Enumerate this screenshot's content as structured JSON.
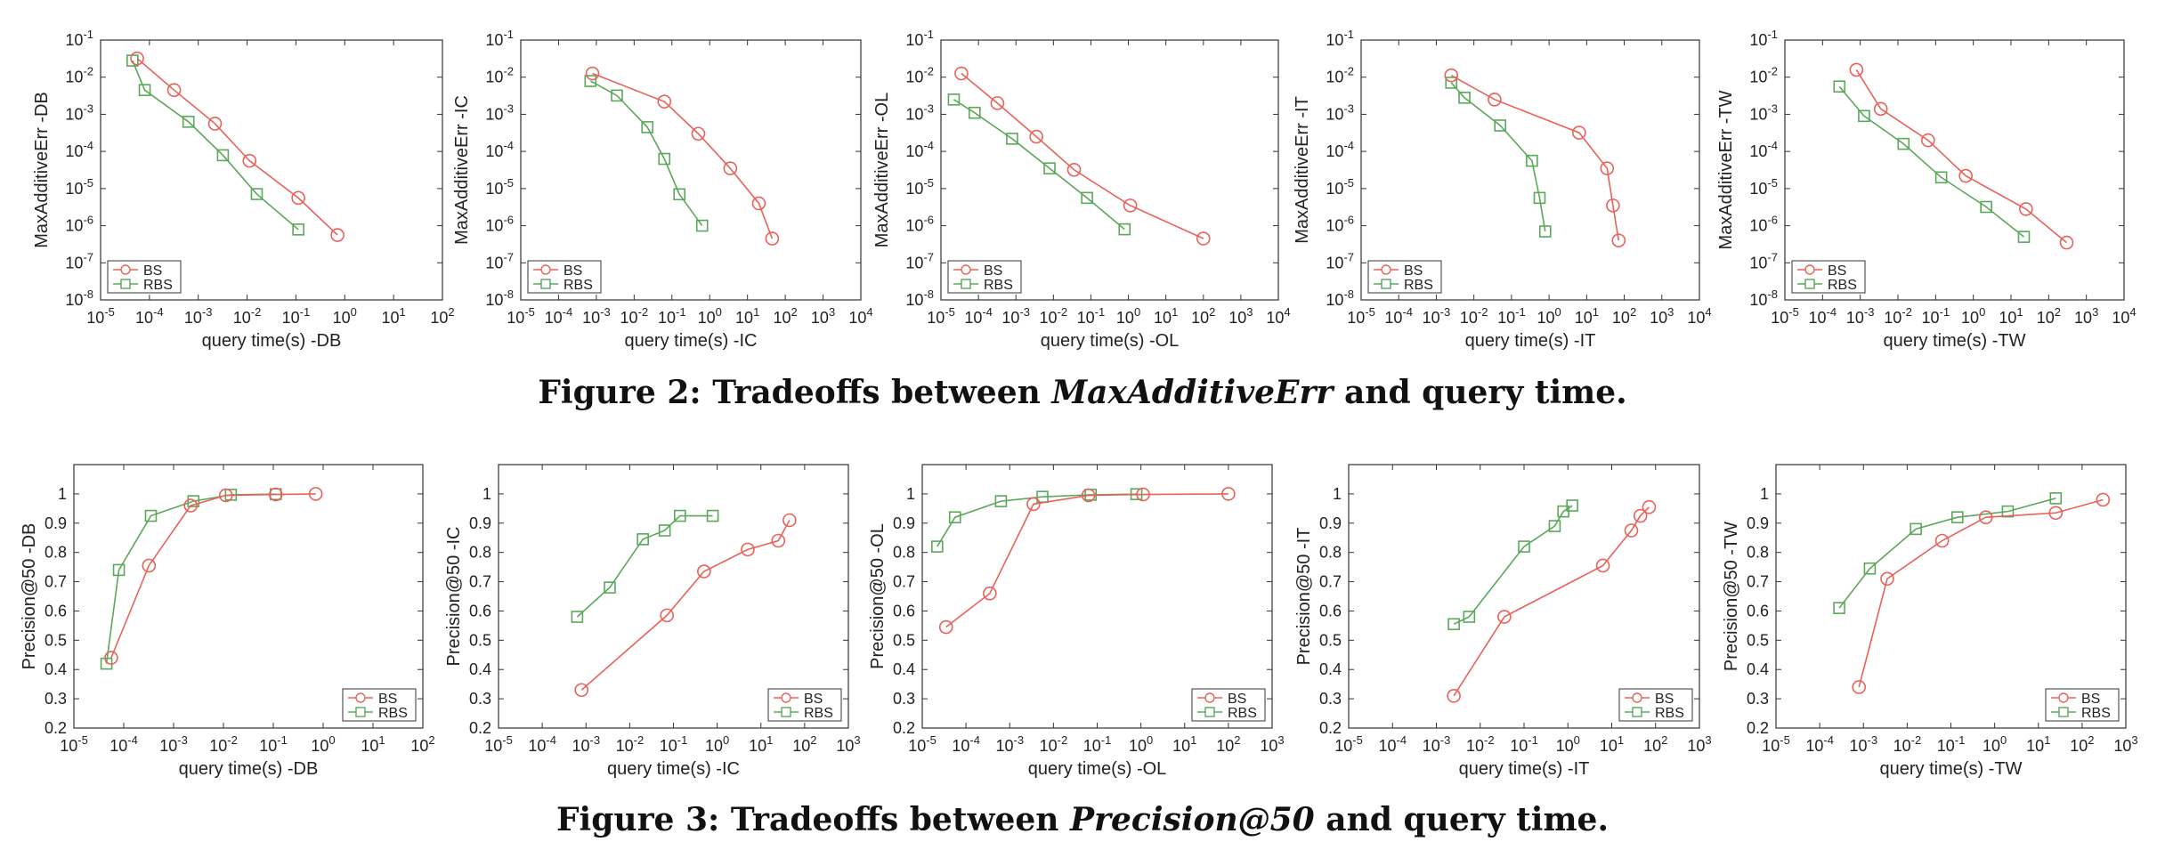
{
  "figures": [
    {
      "caption": {
        "prefix": "Figure 2: Tradeoffs between ",
        "metric": "MaxAdditiveErr",
        "suffix": " and query time."
      }
    },
    {
      "caption": {
        "prefix": "Figure 3: Tradeoffs between ",
        "metric": "Precision@50",
        "suffix": " and query time."
      }
    }
  ],
  "colors": {
    "BS": "#e8625a",
    "RBS": "#5aa85a"
  },
  "chart_data": [
    {
      "type": "line",
      "xscale": "log",
      "yscale": "log",
      "xlim": [
        -5,
        2
      ],
      "ylim": [
        -8,
        -1
      ],
      "xlabel": "query time(s) -DB",
      "ylabel": "MaxAdditiveErr -DB",
      "grid": false,
      "legend": "bottom-left",
      "x_ticks": [
        "10^-5",
        "10^-4",
        "10^-3",
        "10^-2",
        "10^-1",
        "10^0",
        "10^1",
        "10^2"
      ],
      "y_ticks": [
        "10^-8",
        "10^-7",
        "10^-6",
        "10^-5",
        "10^-4",
        "10^-3",
        "10^-2",
        "10^-1"
      ],
      "series": [
        {
          "name": "BS",
          "marker": "circle",
          "x": [
            5.6e-05,
            0.00032,
            0.0022,
            0.0112,
            0.112,
            0.71
          ],
          "y": [
            0.032,
            0.0045,
            0.00056,
            5.6e-05,
            5.6e-06,
            5.6e-07
          ]
        },
        {
          "name": "RBS",
          "marker": "square",
          "x": [
            4.5e-05,
            8e-05,
            0.00063,
            0.0032,
            0.0158,
            0.112
          ],
          "y": [
            0.028,
            0.0045,
            0.00063,
            7.9e-05,
            7.1e-06,
            7.9e-07
          ]
        }
      ]
    },
    {
      "type": "line",
      "xscale": "log",
      "yscale": "log",
      "xlim": [
        -5,
        4
      ],
      "ylim": [
        -8,
        -1
      ],
      "xlabel": "query time(s) -IC",
      "ylabel": "MaxAdditiveErr -IC",
      "grid": false,
      "legend": "bottom-left",
      "x_ticks": [
        "10^-5",
        "10^-4",
        "10^-3",
        "10^-2",
        "10^-1",
        "10^0",
        "10^1",
        "10^2",
        "10^3",
        "10^4"
      ],
      "y_ticks": [
        "10^-8",
        "10^-7",
        "10^-6",
        "10^-5",
        "10^-4",
        "10^-3",
        "10^-2",
        "10^-1"
      ],
      "series": [
        {
          "name": "BS",
          "marker": "circle",
          "x": [
            0.00079,
            0.063,
            0.5,
            3.5,
            20,
            45
          ],
          "y": [
            0.0126,
            0.0022,
            0.0003,
            3.5e-05,
            4e-06,
            4.5e-07
          ]
        },
        {
          "name": "RBS",
          "marker": "square",
          "x": [
            0.0007,
            0.0035,
            0.0224,
            0.063,
            0.158,
            0.63
          ],
          "y": [
            0.0079,
            0.0032,
            0.00045,
            6.3e-05,
            7e-06,
            1e-06
          ]
        }
      ]
    },
    {
      "type": "line",
      "xscale": "log",
      "yscale": "log",
      "xlim": [
        -5,
        4
      ],
      "ylim": [
        -8,
        -1
      ],
      "xlabel": "query time(s) -OL",
      "ylabel": "MaxAdditiveErr -OL",
      "grid": false,
      "legend": "bottom-left",
      "x_ticks": [
        "10^-5",
        "10^-4",
        "10^-3",
        "10^-2",
        "10^-1",
        "10^0",
        "10^1",
        "10^2",
        "10^3",
        "10^4"
      ],
      "y_ticks": [
        "10^-8",
        "10^-7",
        "10^-6",
        "10^-5",
        "10^-4",
        "10^-3",
        "10^-2",
        "10^-1"
      ],
      "series": [
        {
          "name": "BS",
          "marker": "circle",
          "x": [
            3.5e-05,
            0.00032,
            0.0035,
            0.0355,
            1.12,
            100
          ],
          "y": [
            0.0126,
            0.002,
            0.00025,
            3.2e-05,
            3.5e-06,
            4.5e-07
          ]
        },
        {
          "name": "RBS",
          "marker": "square",
          "x": [
            2.2e-05,
            7.9e-05,
            0.00079,
            0.0079,
            0.079,
            0.79
          ],
          "y": [
            0.0025,
            0.0011,
            0.00022,
            3.5e-05,
            5.6e-06,
            8e-07
          ]
        }
      ]
    },
    {
      "type": "line",
      "xscale": "log",
      "yscale": "log",
      "xlim": [
        -5,
        4
      ],
      "ylim": [
        -8,
        -1
      ],
      "xlabel": "query time(s) -IT",
      "ylabel": "MaxAdditiveErr -IT",
      "grid": false,
      "legend": "bottom-left",
      "x_ticks": [
        "10^-5",
        "10^-4",
        "10^-3",
        "10^-2",
        "10^-1",
        "10^0",
        "10^1",
        "10^2",
        "10^3",
        "10^4"
      ],
      "y_ticks": [
        "10^-8",
        "10^-7",
        "10^-6",
        "10^-5",
        "10^-4",
        "10^-3",
        "10^-2",
        "10^-1"
      ],
      "series": [
        {
          "name": "BS",
          "marker": "circle",
          "x": [
            0.0025,
            0.0355,
            6.3,
            35,
            50,
            71
          ],
          "y": [
            0.0112,
            0.0025,
            0.00032,
            3.5e-05,
            3.5e-06,
            4e-07
          ]
        },
        {
          "name": "RBS",
          "marker": "square",
          "x": [
            0.0025,
            0.0056,
            0.05,
            0.35,
            0.56,
            0.79
          ],
          "y": [
            0.0071,
            0.0028,
            0.0005,
            5.6e-05,
            5.6e-06,
            7e-07
          ]
        }
      ]
    },
    {
      "type": "line",
      "xscale": "log",
      "yscale": "log",
      "xlim": [
        -5,
        4
      ],
      "ylim": [
        -8,
        -1
      ],
      "xlabel": "query time(s) -TW",
      "ylabel": "MaxAdditiveErr -TW",
      "grid": false,
      "legend": "bottom-left",
      "x_ticks": [
        "10^-5",
        "10^-4",
        "10^-3",
        "10^-2",
        "10^-1",
        "10^0",
        "10^1",
        "10^2",
        "10^3",
        "10^4"
      ],
      "y_ticks": [
        "10^-8",
        "10^-7",
        "10^-6",
        "10^-5",
        "10^-4",
        "10^-3",
        "10^-2",
        "10^-1"
      ],
      "series": [
        {
          "name": "BS",
          "marker": "circle",
          "x": [
            0.00079,
            0.0035,
            0.063,
            0.63,
            25,
            300
          ],
          "y": [
            0.0158,
            0.0014,
            0.0002,
            2.2e-05,
            2.8e-06,
            3.5e-07
          ]
        },
        {
          "name": "RBS",
          "marker": "square",
          "x": [
            0.00028,
            0.00126,
            0.0141,
            0.141,
            2.2,
            22
          ],
          "y": [
            0.0056,
            0.0009,
            0.00016,
            2e-05,
            3.2e-06,
            5e-07
          ]
        }
      ]
    },
    {
      "type": "line",
      "xscale": "log",
      "yscale": "linear",
      "xlim": [
        -5,
        2
      ],
      "ylim": [
        0.2,
        1.1
      ],
      "xlabel": "query time(s) -DB",
      "ylabel": "Precision@50 -DB",
      "grid": false,
      "legend": "bottom-right",
      "x_ticks": [
        "10^-5",
        "10^-4",
        "10^-3",
        "10^-2",
        "10^-1",
        "10^0",
        "10^1",
        "10^2"
      ],
      "y_ticks": [
        "0.2",
        "0.3",
        "0.4",
        "0.5",
        "0.6",
        "0.7",
        "0.8",
        "0.9",
        "1"
      ],
      "series": [
        {
          "name": "BS",
          "marker": "circle",
          "x": [
            5.6e-05,
            0.00032,
            0.0022,
            0.0112,
            0.112,
            0.71
          ],
          "y": [
            0.44,
            0.755,
            0.96,
            0.995,
            0.998,
            1.0
          ]
        },
        {
          "name": "RBS",
          "marker": "square",
          "x": [
            4.5e-05,
            8e-05,
            0.00035,
            0.0025,
            0.0141,
            0.112
          ],
          "y": [
            0.42,
            0.74,
            0.925,
            0.975,
            0.997,
            0.999
          ]
        }
      ]
    },
    {
      "type": "line",
      "xscale": "log",
      "yscale": "linear",
      "xlim": [
        -5,
        3
      ],
      "ylim": [
        0.2,
        1.1
      ],
      "xlabel": "query time(s) -IC",
      "ylabel": "Precision@50 -IC",
      "grid": false,
      "legend": "bottom-right",
      "x_ticks": [
        "10^-5",
        "10^-4",
        "10^-3",
        "10^-2",
        "10^-1",
        "10^0",
        "10^1",
        "10^2",
        "10^3"
      ],
      "y_ticks": [
        "0.2",
        "0.3",
        "0.4",
        "0.5",
        "0.6",
        "0.7",
        "0.8",
        "0.9",
        "1"
      ],
      "series": [
        {
          "name": "BS",
          "marker": "circle",
          "x": [
            0.00079,
            0.071,
            0.5,
            5,
            25,
            45
          ],
          "y": [
            0.33,
            0.585,
            0.735,
            0.81,
            0.84,
            0.91
          ]
        },
        {
          "name": "RBS",
          "marker": "square",
          "x": [
            0.00063,
            0.0035,
            0.02,
            0.063,
            0.141,
            0.79
          ],
          "y": [
            0.58,
            0.68,
            0.845,
            0.875,
            0.925,
            0.925
          ]
        }
      ]
    },
    {
      "type": "line",
      "xscale": "log",
      "yscale": "linear",
      "xlim": [
        -5,
        3
      ],
      "ylim": [
        0.2,
        1.1
      ],
      "xlabel": "query time(s) -OL",
      "ylabel": "Precision@50 -OL",
      "grid": false,
      "legend": "bottom-right",
      "x_ticks": [
        "10^-5",
        "10^-4",
        "10^-3",
        "10^-2",
        "10^-1",
        "10^0",
        "10^1",
        "10^2",
        "10^3"
      ],
      "y_ticks": [
        "0.2",
        "0.3",
        "0.4",
        "0.5",
        "0.6",
        "0.7",
        "0.8",
        "0.9",
        "1"
      ],
      "series": [
        {
          "name": "BS",
          "marker": "circle",
          "x": [
            3.5e-05,
            0.00035,
            0.0035,
            0.063,
            1.12,
            100
          ],
          "y": [
            0.545,
            0.66,
            0.965,
            0.995,
            0.998,
            1.0
          ]
        },
        {
          "name": "RBS",
          "marker": "square",
          "x": [
            2.2e-05,
            5.6e-05,
            0.00063,
            0.0056,
            0.071,
            0.79
          ],
          "y": [
            0.82,
            0.92,
            0.975,
            0.99,
            0.997,
            0.999
          ]
        }
      ]
    },
    {
      "type": "line",
      "xscale": "log",
      "yscale": "linear",
      "xlim": [
        -5,
        3
      ],
      "ylim": [
        0.2,
        1.1
      ],
      "xlabel": "query time(s) -IT",
      "ylabel": "Precision@50 -IT",
      "grid": false,
      "legend": "bottom-right",
      "x_ticks": [
        "10^-5",
        "10^-4",
        "10^-3",
        "10^-2",
        "10^-1",
        "10^0",
        "10^1",
        "10^2",
        "10^3"
      ],
      "y_ticks": [
        "0.2",
        "0.3",
        "0.4",
        "0.5",
        "0.6",
        "0.7",
        "0.8",
        "0.9",
        "1"
      ],
      "series": [
        {
          "name": "BS",
          "marker": "circle",
          "x": [
            0.0025,
            0.0355,
            6.3,
            28,
            45,
            71
          ],
          "y": [
            0.31,
            0.58,
            0.755,
            0.875,
            0.925,
            0.955
          ]
        },
        {
          "name": "RBS",
          "marker": "square",
          "x": [
            0.0025,
            0.0056,
            0.1,
            0.5,
            0.79,
            1.26
          ],
          "y": [
            0.555,
            0.58,
            0.82,
            0.89,
            0.94,
            0.96
          ]
        }
      ]
    },
    {
      "type": "line",
      "xscale": "log",
      "yscale": "linear",
      "xlim": [
        -5,
        3
      ],
      "ylim": [
        0.2,
        1.1
      ],
      "xlabel": "query time(s) -TW",
      "ylabel": "Precision@50 -TW",
      "grid": false,
      "legend": "bottom-right",
      "x_ticks": [
        "10^-5",
        "10^-4",
        "10^-3",
        "10^-2",
        "10^-1",
        "10^0",
        "10^1",
        "10^2",
        "10^3"
      ],
      "y_ticks": [
        "0.2",
        "0.3",
        "0.4",
        "0.5",
        "0.6",
        "0.7",
        "0.8",
        "0.9",
        "1"
      ],
      "series": [
        {
          "name": "BS",
          "marker": "circle",
          "x": [
            0.00079,
            0.0035,
            0.063,
            0.63,
            25,
            300
          ],
          "y": [
            0.34,
            0.71,
            0.84,
            0.92,
            0.935,
            0.98
          ]
        },
        {
          "name": "RBS",
          "marker": "square",
          "x": [
            0.00028,
            0.0014,
            0.0158,
            0.141,
            2,
            25
          ],
          "y": [
            0.61,
            0.745,
            0.88,
            0.92,
            0.94,
            0.985
          ]
        }
      ]
    }
  ]
}
